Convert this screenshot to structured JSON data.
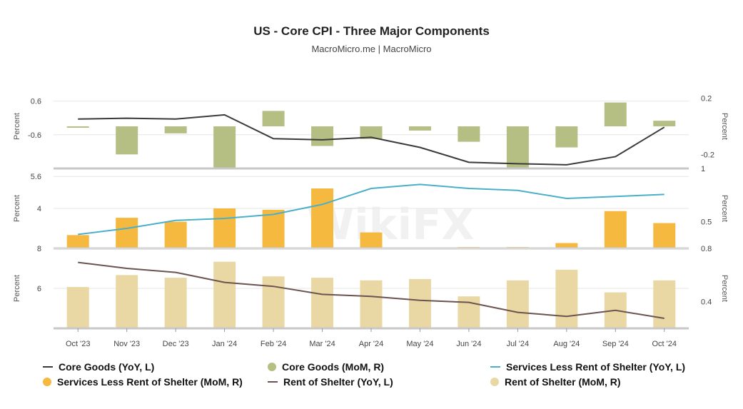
{
  "title": "US - Core CPI - Three Major Components",
  "subtitle": "MacroMicro.me | MacroMicro",
  "watermark_text": "WikiFX",
  "categories": [
    "Oct '23",
    "Nov '23",
    "Dec '23",
    "Jan '24",
    "Feb '24",
    "Mar '24",
    "Apr '24",
    "May '24",
    "Jun '24",
    "Jul '24",
    "Aug '24",
    "Sep '24",
    "Oct '24"
  ],
  "chart_data": [
    {
      "type": "bar",
      "panel": "top",
      "ylabel_left": "Percent",
      "ylabel_right": "Percent",
      "left_axis": {
        "range": [
          -1.8,
          1.2
        ],
        "ticks": [
          0.6,
          -0.6
        ]
      },
      "right_axis": {
        "range": [
          -0.3,
          0.3
        ],
        "ticks": [
          0.2,
          -0.2
        ],
        "bottom_tick": 1
      },
      "series": [
        {
          "name": "Core Goods (YoY, L)",
          "kind": "line",
          "axis": "left",
          "color": "#3a3a3a",
          "values": [
            -0.04,
            -0.01,
            -0.04,
            0.11,
            -0.74,
            -0.78,
            -0.69,
            -1.05,
            -1.58,
            -1.63,
            -1.67,
            -1.38,
            -0.33
          ]
        },
        {
          "name": "Core Goods (MoM, R)",
          "kind": "bar",
          "axis": "right",
          "color": "#b5bf83",
          "values": [
            -0.01,
            -0.2,
            -0.05,
            -0.3,
            0.11,
            -0.14,
            -0.09,
            -0.03,
            -0.11,
            -0.3,
            -0.15,
            0.17,
            0.04
          ]
        }
      ]
    },
    {
      "type": "bar",
      "panel": "middle",
      "ylabel_left": "Percent",
      "ylabel_right": "Percent",
      "left_axis": {
        "range": [
          2.0,
          6.0
        ],
        "ticks": [
          5.6,
          4
        ]
      },
      "right_axis": {
        "range": [
          0.3,
          0.9
        ],
        "ticks": [
          0.5
        ]
      },
      "series": [
        {
          "name": "Services Less Rent of Shelter (YoY, L)",
          "kind": "line",
          "axis": "left",
          "color": "#4ab0c8",
          "values": [
            2.7,
            3.0,
            3.4,
            3.5,
            3.7,
            4.2,
            5.0,
            5.2,
            5.0,
            4.9,
            4.5,
            4.6,
            4.7
          ]
        },
        {
          "name": "Services Less Rent of Shelter (MoM, R)",
          "kind": "bar",
          "axis": "right",
          "color": "#f5b940",
          "values": [
            0.4,
            0.53,
            0.5,
            0.6,
            0.59,
            0.75,
            0.42,
            0.3,
            0.31,
            0.31,
            0.34,
            0.58,
            0.49
          ]
        }
      ]
    },
    {
      "type": "bar",
      "panel": "bottom",
      "ylabel_left": "Percent",
      "ylabel_right": "Percent",
      "left_axis": {
        "range": [
          4.0,
          8.0
        ],
        "ticks": [
          8,
          6
        ]
      },
      "right_axis": {
        "range": [
          0.2,
          0.8
        ],
        "ticks": [
          0.8,
          0.4
        ]
      },
      "series": [
        {
          "name": "Rent of Shelter (YoY, L)",
          "kind": "line",
          "axis": "left",
          "color": "#6b5350",
          "values": [
            7.3,
            7.0,
            6.8,
            6.3,
            6.1,
            5.7,
            5.6,
            5.4,
            5.3,
            4.8,
            4.6,
            4.9,
            4.5
          ]
        },
        {
          "name": "Rent of Shelter (MoM, R)",
          "kind": "bar",
          "axis": "right",
          "color": "#ead8a4",
          "values": [
            0.51,
            0.6,
            0.58,
            0.7,
            0.59,
            0.58,
            0.56,
            0.57,
            0.44,
            0.56,
            0.64,
            0.47,
            0.56
          ]
        }
      ]
    }
  ],
  "legend": [
    {
      "label": "Core Goods (YoY, L)",
      "kind": "line",
      "color": "#3a3a3a"
    },
    {
      "label": "Core Goods (MoM, R)",
      "kind": "dot",
      "color": "#b5bf83"
    },
    {
      "label": "Services Less Rent of Shelter (YoY, L)",
      "kind": "line",
      "color": "#4ab0c8"
    },
    {
      "label": "Services Less Rent of Shelter (MoM, R)",
      "kind": "dot",
      "color": "#f5b940"
    },
    {
      "label": "Rent of Shelter (YoY, L)",
      "kind": "line",
      "color": "#6b5350"
    },
    {
      "label": "Rent of Shelter (MoM, R)",
      "kind": "dot",
      "color": "#ead8a4"
    }
  ]
}
